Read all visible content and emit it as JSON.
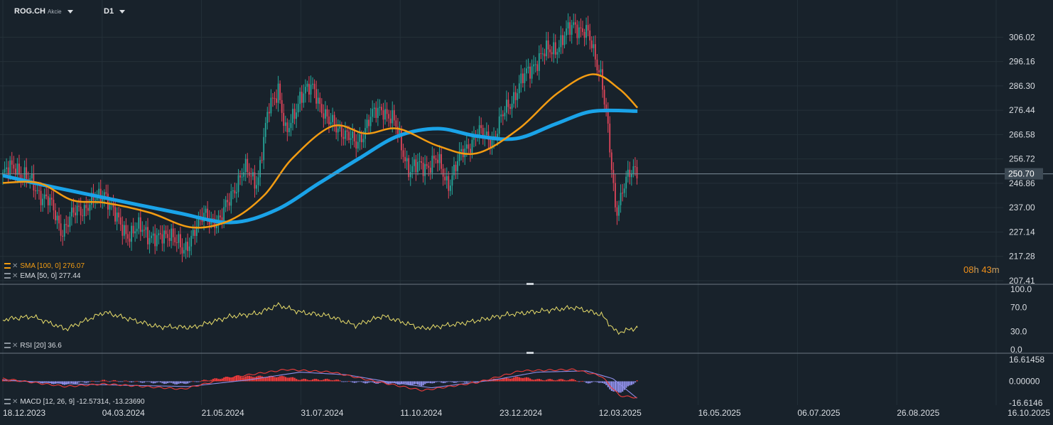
{
  "header": {
    "symbol": "ROG.CH",
    "asset_type": "Akcie",
    "timeframe": "D1"
  },
  "indicators": {
    "sma": "SMA [100, 0] 276.07",
    "ema": "EMA [50, 0] 277.44",
    "rsi": "RSI [20] 36.6",
    "macd": "MACD [12, 26, 9] -12.57314, -13.23690"
  },
  "countdown": {
    "hours": "08",
    "h": "h",
    "minutes": "43",
    "m": "m"
  },
  "colors": {
    "background": "#18222b",
    "sma": "#1aa3e8",
    "ema": "#f39c12",
    "bull": "#26a69a",
    "bear": "#e0455a",
    "rsi": "#e8dd6a",
    "macd": "#ef3b3b",
    "signal": "#8e8ee8"
  },
  "chart_data": [
    {
      "type": "candlestick",
      "title": "ROG.CH",
      "x_tick_labels": [
        "18.12.2023",
        "04.03.2024",
        "21.05.2024",
        "31.07.2024",
        "11.10.2024",
        "23.12.2024",
        "12.03.2025",
        "16.05.2025",
        "06.07.2025",
        "26.08.2025",
        "16.10.2025"
      ],
      "y_tick_labels": [
        "306.02",
        "296.16",
        "286.30",
        "276.44",
        "266.58",
        "256.72",
        "246.86",
        "237.00",
        "227.14",
        "217.28",
        "207.41"
      ],
      "ylim": [
        207.41,
        315.9
      ],
      "current_price": "250.70",
      "close_path": [
        {
          "date": "2023-12-18",
          "close": 250
        },
        {
          "date": "2023-12-28",
          "close": 254
        },
        {
          "date": "2024-01-10",
          "close": 246
        },
        {
          "date": "2024-01-22",
          "close": 240
        },
        {
          "date": "2024-02-02",
          "close": 228
        },
        {
          "date": "2024-02-14",
          "close": 236
        },
        {
          "date": "2024-02-26",
          "close": 239
        },
        {
          "date": "2024-03-06",
          "close": 244
        },
        {
          "date": "2024-03-15",
          "close": 232
        },
        {
          "date": "2024-03-26",
          "close": 226
        },
        {
          "date": "2024-04-05",
          "close": 229
        },
        {
          "date": "2024-04-16",
          "close": 223
        },
        {
          "date": "2024-04-26",
          "close": 228
        },
        {
          "date": "2024-05-06",
          "close": 218
        },
        {
          "date": "2024-05-14",
          "close": 228
        },
        {
          "date": "2024-05-24",
          "close": 234
        },
        {
          "date": "2024-06-04",
          "close": 231
        },
        {
          "date": "2024-06-13",
          "close": 244
        },
        {
          "date": "2024-06-24",
          "close": 252
        },
        {
          "date": "2024-07-03",
          "close": 248
        },
        {
          "date": "2024-07-12",
          "close": 278
        },
        {
          "date": "2024-07-19",
          "close": 286
        },
        {
          "date": "2024-07-25",
          "close": 265
        },
        {
          "date": "2024-08-05",
          "close": 283
        },
        {
          "date": "2024-08-16",
          "close": 285
        },
        {
          "date": "2024-08-27",
          "close": 271
        },
        {
          "date": "2024-09-06",
          "close": 269
        },
        {
          "date": "2024-09-17",
          "close": 262
        },
        {
          "date": "2024-09-27",
          "close": 272
        },
        {
          "date": "2024-10-08",
          "close": 278
        },
        {
          "date": "2024-10-18",
          "close": 270
        },
        {
          "date": "2024-10-29",
          "close": 252
        },
        {
          "date": "2024-11-08",
          "close": 254
        },
        {
          "date": "2024-11-19",
          "close": 256
        },
        {
          "date": "2024-11-28",
          "close": 247
        },
        {
          "date": "2024-12-10",
          "close": 260
        },
        {
          "date": "2024-12-20",
          "close": 267
        },
        {
          "date": "2025-01-02",
          "close": 265
        },
        {
          "date": "2025-01-13",
          "close": 278
        },
        {
          "date": "2025-01-23",
          "close": 287
        },
        {
          "date": "2025-02-03",
          "close": 296
        },
        {
          "date": "2025-02-13",
          "close": 300
        },
        {
          "date": "2025-02-24",
          "close": 304
        },
        {
          "date": "2025-03-06",
          "close": 312
        },
        {
          "date": "2025-03-17",
          "close": 306
        },
        {
          "date": "2025-03-27",
          "close": 291
        },
        {
          "date": "2025-04-01",
          "close": 268
        },
        {
          "date": "2025-04-07",
          "close": 235
        },
        {
          "date": "2025-04-14",
          "close": 248
        },
        {
          "date": "2025-04-24",
          "close": 252
        }
      ],
      "series": [
        {
          "name": "SMA [100, 0]",
          "values": [
            {
              "date": "2023-12-18",
              "value": 250
            },
            {
              "date": "2024-01-20",
              "value": 246
            },
            {
              "date": "2024-03-06",
              "value": 241
            },
            {
              "date": "2024-05-01",
              "value": 235
            },
            {
              "date": "2024-06-12",
              "value": 231
            },
            {
              "date": "2024-07-17",
              "value": 236
            },
            {
              "date": "2024-08-20",
              "value": 247
            },
            {
              "date": "2024-09-20",
              "value": 257
            },
            {
              "date": "2024-10-20",
              "value": 266
            },
            {
              "date": "2024-11-20",
              "value": 269
            },
            {
              "date": "2024-12-20",
              "value": 266
            },
            {
              "date": "2025-01-20",
              "value": 265
            },
            {
              "date": "2025-02-20",
              "value": 271
            },
            {
              "date": "2025-03-20",
              "value": 276
            },
            {
              "date": "2025-04-24",
              "value": 276.07
            }
          ]
        },
        {
          "name": "EMA [50, 0]",
          "values": [
            {
              "date": "2023-12-18",
              "value": 247
            },
            {
              "date": "2024-01-15",
              "value": 247
            },
            {
              "date": "2024-02-10",
              "value": 240
            },
            {
              "date": "2024-03-06",
              "value": 239
            },
            {
              "date": "2024-04-10",
              "value": 235
            },
            {
              "date": "2024-05-13",
              "value": 229
            },
            {
              "date": "2024-06-12",
              "value": 232
            },
            {
              "date": "2024-07-08",
              "value": 242
            },
            {
              "date": "2024-07-30",
              "value": 257
            },
            {
              "date": "2024-08-30",
              "value": 270
            },
            {
              "date": "2024-09-25",
              "value": 267
            },
            {
              "date": "2024-10-20",
              "value": 269
            },
            {
              "date": "2024-11-20",
              "value": 262
            },
            {
              "date": "2024-12-20",
              "value": 259
            },
            {
              "date": "2025-01-22",
              "value": 269
            },
            {
              "date": "2025-02-20",
              "value": 283
            },
            {
              "date": "2025-03-20",
              "value": 291
            },
            {
              "date": "2025-04-10",
              "value": 285
            },
            {
              "date": "2025-04-24",
              "value": 277.44
            }
          ]
        }
      ]
    },
    {
      "type": "line",
      "title": "RSI [20] 36.6",
      "y_tick_labels": [
        "100.0",
        "70.0",
        "30.0",
        "0.0"
      ],
      "ylim": [
        0,
        100
      ],
      "series": [
        {
          "name": "RSI [20]",
          "values": [
            {
              "date": "2023-12-18",
              "value": 50
            },
            {
              "date": "2024-01-10",
              "value": 55
            },
            {
              "date": "2024-02-05",
              "value": 34
            },
            {
              "date": "2024-03-06",
              "value": 62
            },
            {
              "date": "2024-04-16",
              "value": 38
            },
            {
              "date": "2024-05-14",
              "value": 37
            },
            {
              "date": "2024-06-12",
              "value": 55
            },
            {
              "date": "2024-07-03",
              "value": 60
            },
            {
              "date": "2024-07-19",
              "value": 74
            },
            {
              "date": "2024-08-05",
              "value": 62
            },
            {
              "date": "2024-08-27",
              "value": 56
            },
            {
              "date": "2024-09-17",
              "value": 40
            },
            {
              "date": "2024-10-08",
              "value": 56
            },
            {
              "date": "2024-11-08",
              "value": 35
            },
            {
              "date": "2024-12-10",
              "value": 44
            },
            {
              "date": "2025-01-13",
              "value": 58
            },
            {
              "date": "2025-02-13",
              "value": 65
            },
            {
              "date": "2025-03-06",
              "value": 70
            },
            {
              "date": "2025-03-27",
              "value": 58
            },
            {
              "date": "2025-04-08",
              "value": 28
            },
            {
              "date": "2025-04-24",
              "value": 36.6
            }
          ]
        }
      ]
    },
    {
      "type": "bar",
      "title": "MACD [12, 26, 9] -12.57314, -13.23690",
      "y_tick_labels": [
        "16.61458",
        "0.00000",
        "-16.6146"
      ],
      "ylim": [
        -16.6146,
        16.61458
      ],
      "series": [
        {
          "name": "MACD",
          "values": [
            {
              "date": "2023-12-18",
              "value": 2
            },
            {
              "date": "2024-02-05",
              "value": -4
            },
            {
              "date": "2024-03-06",
              "value": -2
            },
            {
              "date": "2024-05-06",
              "value": -6
            },
            {
              "date": "2024-06-12",
              "value": 3
            },
            {
              "date": "2024-07-25",
              "value": 9
            },
            {
              "date": "2024-08-30",
              "value": 7
            },
            {
              "date": "2024-09-27",
              "value": 1
            },
            {
              "date": "2024-11-08",
              "value": -7
            },
            {
              "date": "2024-12-20",
              "value": -1
            },
            {
              "date": "2025-01-23",
              "value": 8
            },
            {
              "date": "2025-03-06",
              "value": 9
            },
            {
              "date": "2025-03-27",
              "value": 4
            },
            {
              "date": "2025-04-10",
              "value": -11
            },
            {
              "date": "2025-04-24",
              "value": -12.57314
            }
          ]
        },
        {
          "name": "Signal",
          "values": [
            {
              "date": "2023-12-18",
              "value": 1
            },
            {
              "date": "2024-02-10",
              "value": -2
            },
            {
              "date": "2024-03-20",
              "value": -3
            },
            {
              "date": "2024-05-10",
              "value": -4
            },
            {
              "date": "2024-06-25",
              "value": 1
            },
            {
              "date": "2024-08-05",
              "value": 7
            },
            {
              "date": "2024-09-10",
              "value": 5
            },
            {
              "date": "2024-10-10",
              "value": 0
            },
            {
              "date": "2024-11-15",
              "value": -5
            },
            {
              "date": "2025-01-02",
              "value": 1
            },
            {
              "date": "2025-02-05",
              "value": 7
            },
            {
              "date": "2025-03-15",
              "value": 8
            },
            {
              "date": "2025-04-05",
              "value": 2
            },
            {
              "date": "2025-04-24",
              "value": -13.2369
            }
          ]
        }
      ]
    }
  ]
}
